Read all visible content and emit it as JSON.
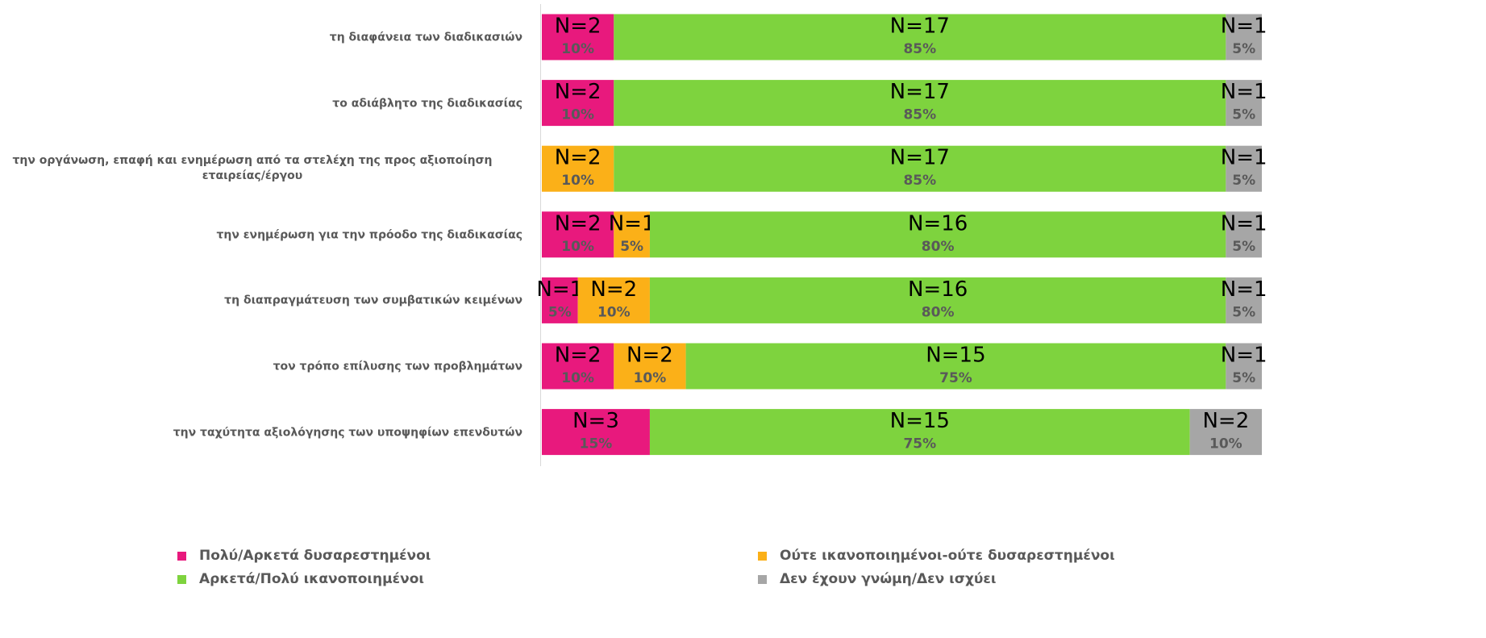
{
  "chart_data": {
    "type": "stacked-bar-horizontal",
    "categories": [
      "τη διαφάνεια των διαδικασιών",
      "το αδιάβλητο της διαδικασίας",
      "την οργάνωση, επαφή και ενημέρωση από τα στελέχη της προς αξιοποίηση εταιρείας/έργου",
      "την ενημέρωση για την πρόοδο της διαδικασίας",
      "τη διαπραγμάτευση των συμβατικών κειμένων",
      "τον τρόπο επίλυσης των προβλημάτων",
      "την ταχύτητα αξιολόγησης των υποψηφίων επενδυτών"
    ],
    "xlim": [
      0,
      100
    ],
    "legend": "bottom",
    "series": [
      {
        "name": "Πολύ/Αρκετά δυσαρεστημένοι",
        "color": "#e8197d",
        "values": [
          10,
          10,
          null,
          10,
          5,
          10,
          15
        ],
        "value_labels": [
          "10%",
          "10%",
          null,
          "10%",
          "5%",
          "10%",
          "15%"
        ],
        "counts": [
          2,
          2,
          null,
          2,
          1,
          2,
          3
        ],
        "count_labels": [
          "N=2",
          "N=2",
          null,
          "N=2",
          "N=1",
          "N=2",
          "N=3"
        ]
      },
      {
        "name": "Ούτε ικανοποιημένοι-ούτε δυσαρεστημένοι",
        "color": "#fbb018",
        "values": [
          null,
          null,
          10,
          5,
          10,
          10,
          null
        ],
        "value_labels": [
          null,
          null,
          "10%",
          "5%",
          "10%",
          "10%",
          null
        ],
        "counts": [
          null,
          null,
          2,
          1,
          2,
          2,
          null
        ],
        "count_labels": [
          null,
          null,
          "N=2",
          "N=1",
          "N=2",
          "N=2",
          null
        ]
      },
      {
        "name": "Αρκετά/Πολύ ικανοποιημένοι",
        "color": "#7ed33e",
        "values": [
          85,
          85,
          85,
          80,
          80,
          75,
          75
        ],
        "value_labels": [
          "85%",
          "85%",
          "85%",
          "80%",
          "80%",
          "75%",
          "75%"
        ],
        "counts": [
          17,
          17,
          17,
          16,
          16,
          15,
          15
        ],
        "count_labels": [
          "N=17",
          "N=17",
          "N=17",
          "N=16",
          "N=16",
          "N=15",
          "N=15"
        ]
      },
      {
        "name": "Δεν έχουν γνώμη/Δεν ισχύει",
        "color": "#a6a6a6",
        "values": [
          5,
          5,
          5,
          5,
          5,
          5,
          10
        ],
        "value_labels": [
          "5%",
          "5%",
          "5%",
          "5%",
          "5%",
          "5%",
          "10%"
        ],
        "counts": [
          1,
          1,
          1,
          1,
          1,
          1,
          2
        ],
        "count_labels": [
          "N=1",
          "N=1",
          "N=1",
          "N=1",
          "N=1",
          "N=1",
          "N=2"
        ]
      }
    ]
  }
}
